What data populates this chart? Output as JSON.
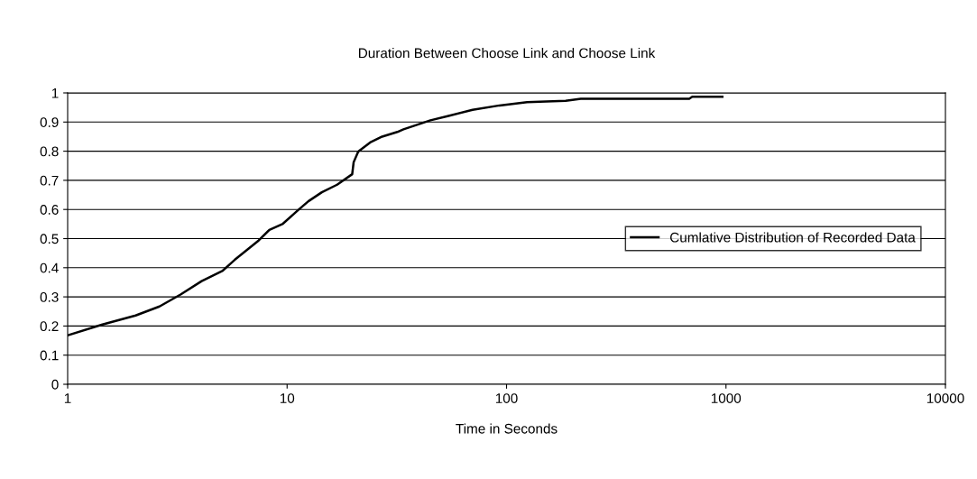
{
  "chart_data": {
    "type": "line",
    "title": "Duration Between Choose Link and Choose Link",
    "xlabel": "Time in Seconds",
    "series": [
      {
        "name": "Cumlative Distribution of Recorded Data",
        "color": "#000000",
        "x": [
          1,
          1.44,
          2.04,
          2.62,
          3.27,
          4.08,
          5.09,
          5.77,
          7.43,
          8.3,
          9.57,
          11.2,
          12.5,
          14.4,
          16.9,
          19.8,
          20.1,
          21.1,
          23.9,
          27.1,
          31.8,
          33.9,
          45,
          54.4,
          70,
          92.9,
          124,
          186,
          218,
          680,
          702,
          963
        ],
        "values": [
          0.168,
          0.205,
          0.236,
          0.267,
          0.308,
          0.354,
          0.39,
          0.427,
          0.494,
          0.53,
          0.551,
          0.597,
          0.628,
          0.659,
          0.685,
          0.721,
          0.762,
          0.799,
          0.83,
          0.85,
          0.866,
          0.875,
          0.906,
          0.921,
          0.942,
          0.957,
          0.968,
          0.973,
          0.98,
          0.98,
          0.987,
          0.987
        ]
      }
    ],
    "log": "x",
    "xlim": [
      1,
      10000
    ],
    "xticks": [
      1,
      10,
      100,
      1000,
      10000
    ],
    "ylim": [
      0,
      1
    ],
    "yticks": [
      0,
      0.1,
      0.2,
      0.3,
      0.4,
      0.5,
      0.6,
      0.7,
      0.8,
      0.9,
      1
    ],
    "grid": "y",
    "legend": "right",
    "marker": "none",
    "line_style": "solid"
  }
}
